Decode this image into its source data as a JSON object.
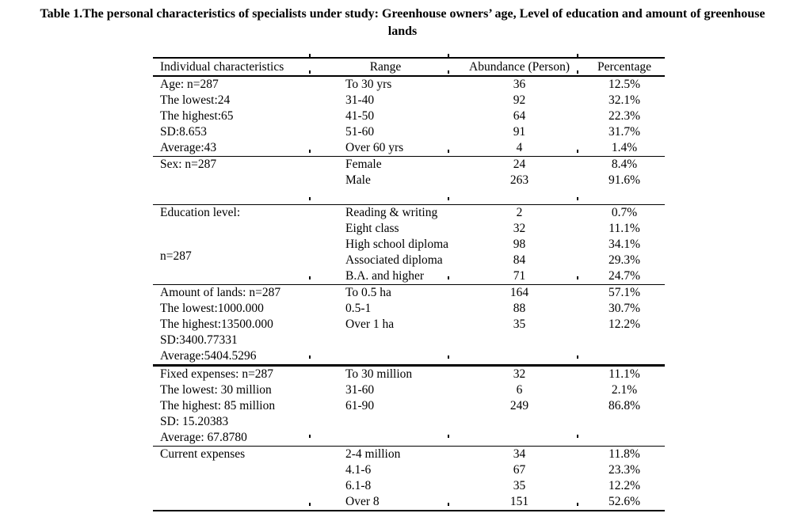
{
  "caption": {
    "line1": "Table 1.The personal characteristics of specialists under study: Greenhouse owners’ age, Level of education and amount of greenhouse",
    "line2": "lands"
  },
  "colors": {
    "text": "#000000",
    "background": "#ffffff"
  },
  "table": {
    "headers": [
      "Individual characteristics",
      "Range",
      "Abundance (Person)",
      "Percentage"
    ],
    "sections": [
      {
        "name": "age",
        "char_layout": "per-row",
        "characteristics": [
          "Age: n=287",
          "The lowest:24",
          "The highest:65",
          "SD:8.653",
          "Average:43"
        ],
        "rows": [
          [
            "To 30 yrs",
            "36",
            "12.5%"
          ],
          [
            "31-40",
            "92",
            "32.1%"
          ],
          [
            "41-50",
            "64",
            "22.3%"
          ],
          [
            "51-60",
            "91",
            "31.7%"
          ],
          [
            "Over 60 yrs",
            "4",
            "1.4%"
          ]
        ]
      },
      {
        "name": "sex",
        "char_layout": "block",
        "characteristics": [
          "Sex: n=287"
        ],
        "rows": [
          [
            "Female",
            "24",
            "8.4%"
          ],
          [
            "Male",
            "263",
            "91.6%"
          ],
          [
            "",
            "",
            ""
          ]
        ]
      },
      {
        "name": "education",
        "char_layout": "block",
        "characteristics": [
          "Education level:",
          "n=287"
        ],
        "rows": [
          [
            "Reading & writing",
            "2",
            "0.7%"
          ],
          [
            "Eight class",
            "32",
            "11.1%"
          ],
          [
            "High school diploma",
            "98",
            "34.1%"
          ],
          [
            "Associated diploma",
            "84",
            "29.3%"
          ],
          [
            "B.A. and higher",
            "71",
            "24.7%"
          ]
        ]
      },
      {
        "name": "lands",
        "char_layout": "per-row",
        "characteristics": [
          "Amount of lands: n=287",
          "The lowest:1000.000",
          "The highest:13500.000",
          "SD:3400.77331",
          "Average:5404.5296"
        ],
        "rows": [
          [
            "To 0.5 ha",
            "164",
            "57.1%"
          ],
          [
            "0.5-1",
            "88",
            "30.7%"
          ],
          [
            "Over 1 ha",
            "35",
            "12.2%"
          ],
          [
            "",
            "",
            ""
          ],
          [
            "",
            "",
            ""
          ]
        ]
      },
      {
        "name": "fixed_expenses",
        "char_layout": "per-row",
        "characteristics": [
          "Fixed expenses: n=287",
          "The lowest: 30 million",
          "The highest: 85 million",
          "SD: 15.20383",
          "Average: 67.8780"
        ],
        "rows": [
          [
            "To 30 million",
            "32",
            "11.1%"
          ],
          [
            "31-60",
            "6",
            "2.1%"
          ],
          [
            "61-90",
            "249",
            "86.8%"
          ],
          [
            "",
            "",
            ""
          ],
          [
            "",
            "",
            ""
          ]
        ]
      },
      {
        "name": "current_expenses",
        "char_layout": "block",
        "characteristics": [
          "Current expenses"
        ],
        "rows": [
          [
            "2-4 million",
            "34",
            "11.8%"
          ],
          [
            "4.1-6",
            "67",
            "23.3%"
          ],
          [
            "6.1-8",
            "35",
            "12.2%"
          ],
          [
            "Over 8",
            "151",
            "52.6%"
          ]
        ]
      }
    ]
  }
}
